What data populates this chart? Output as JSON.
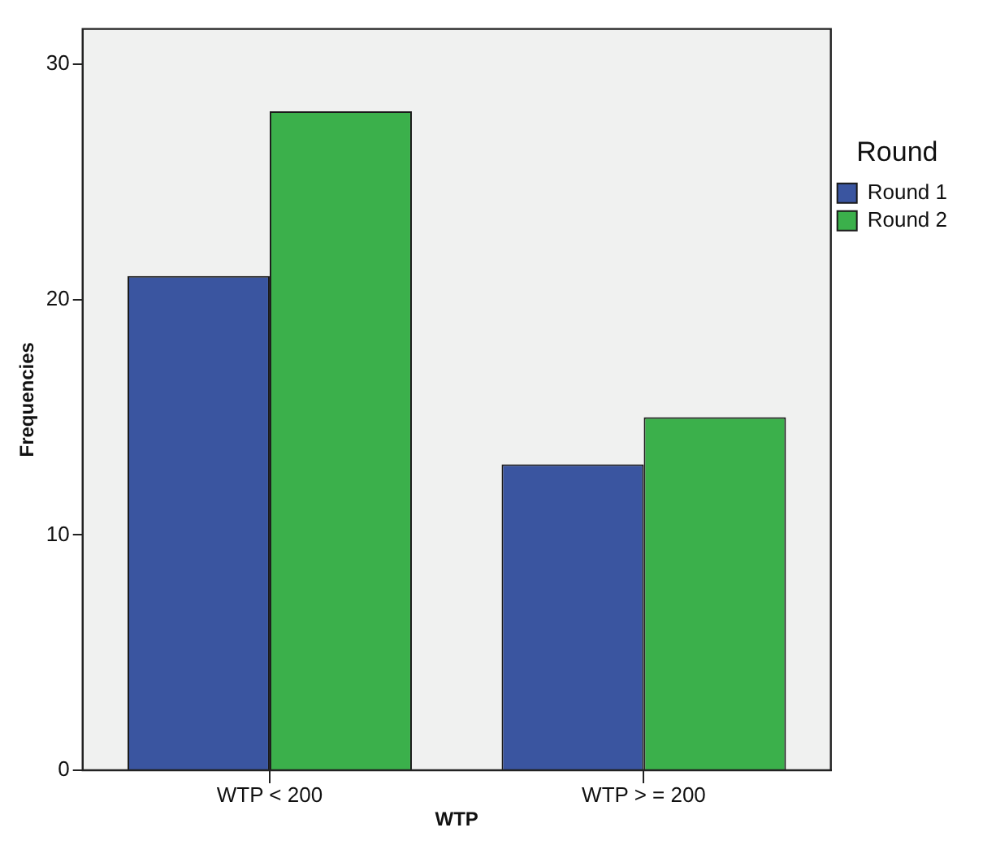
{
  "chart_data": {
    "type": "bar",
    "xlabel": "WTP",
    "ylabel": "Frequencies",
    "legend_title": "Round",
    "legend": "right",
    "categories": [
      "WTP < 200",
      "WTP > = 200"
    ],
    "series": [
      {
        "name": "Round 1",
        "color": "#3a55a0",
        "values": [
          21,
          13
        ]
      },
      {
        "name": "Round 2",
        "color": "#3bb04b",
        "values": [
          28,
          15
        ]
      }
    ],
    "ylim": [
      0,
      31.5
    ],
    "yticks": [
      0,
      10,
      20,
      30
    ],
    "grid": false
  }
}
